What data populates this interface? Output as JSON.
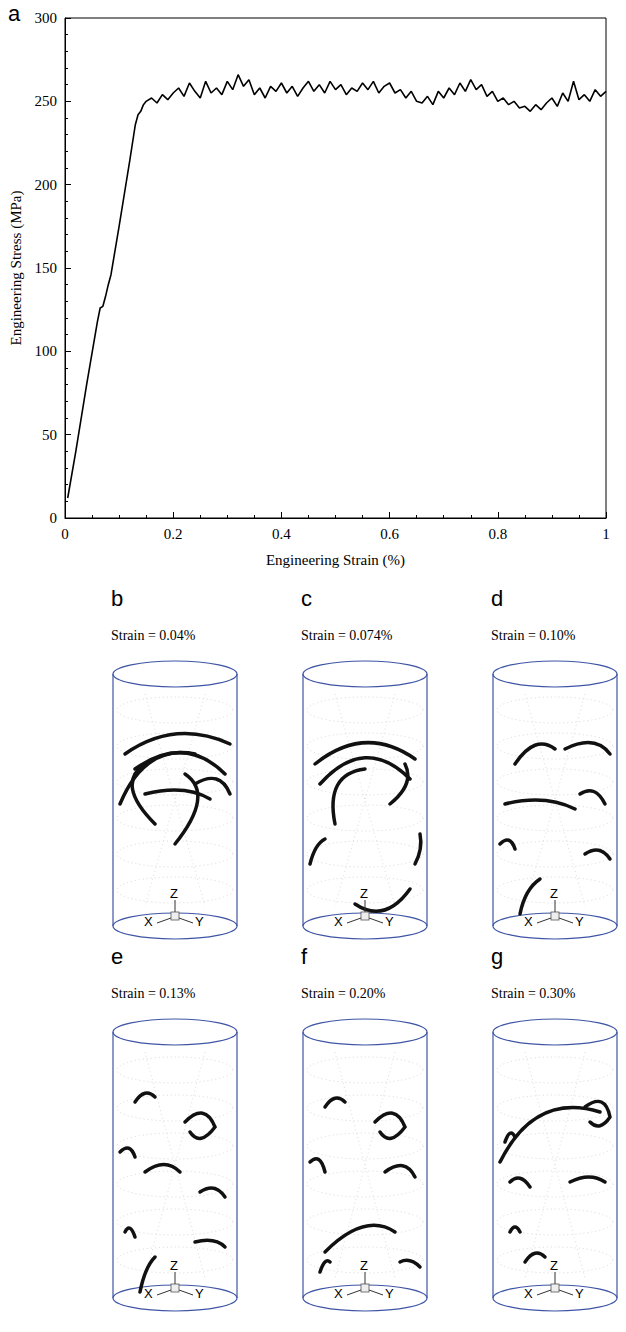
{
  "chart_data": {
    "type": "line",
    "annotations": [
      "a"
    ],
    "x_label": "Engineering Strain (%)",
    "y_label": "Engineering Stress (MPa)",
    "x": [
      0.005,
      0.02,
      0.04,
      0.06,
      0.065,
      0.07,
      0.075,
      0.08,
      0.085,
      0.1,
      0.12,
      0.13,
      0.135,
      0.14,
      0.145,
      0.15,
      0.16,
      0.17,
      0.18,
      0.19,
      0.2,
      0.21,
      0.22,
      0.23,
      0.24,
      0.25,
      0.26,
      0.27,
      0.28,
      0.29,
      0.3,
      0.31,
      0.32,
      0.33,
      0.34,
      0.35,
      0.36,
      0.37,
      0.38,
      0.39,
      0.4,
      0.41,
      0.42,
      0.43,
      0.44,
      0.45,
      0.46,
      0.47,
      0.48,
      0.49,
      0.5,
      0.51,
      0.52,
      0.53,
      0.54,
      0.55,
      0.56,
      0.57,
      0.58,
      0.59,
      0.6,
      0.61,
      0.62,
      0.63,
      0.64,
      0.65,
      0.66,
      0.67,
      0.68,
      0.69,
      0.7,
      0.71,
      0.72,
      0.73,
      0.74,
      0.75,
      0.76,
      0.77,
      0.78,
      0.79,
      0.8,
      0.81,
      0.82,
      0.83,
      0.84,
      0.85,
      0.86,
      0.87,
      0.88,
      0.89,
      0.9,
      0.91,
      0.92,
      0.93,
      0.94,
      0.95,
      0.96,
      0.97,
      0.98,
      0.99,
      1.0
    ],
    "values": [
      12,
      40,
      80,
      118,
      126,
      127,
      133,
      140,
      146,
      175,
      215,
      236,
      242,
      244,
      248,
      250,
      252,
      249,
      254,
      251,
      255,
      258,
      253,
      261,
      256,
      252,
      262,
      255,
      258,
      254,
      262,
      257,
      266,
      259,
      263,
      254,
      258,
      252,
      259,
      256,
      261,
      255,
      259,
      253,
      258,
      262,
      256,
      260,
      255,
      262,
      257,
      260,
      254,
      258,
      256,
      261,
      257,
      262,
      255,
      259,
      261,
      255,
      257,
      252,
      256,
      250,
      249,
      253,
      248,
      256,
      252,
      258,
      254,
      261,
      256,
      263,
      257,
      260,
      253,
      256,
      250,
      252,
      248,
      250,
      246,
      247,
      244,
      248,
      245,
      249,
      252,
      247,
      255,
      250,
      262,
      251,
      254,
      250,
      257,
      253,
      256
    ],
    "color": "#000000",
    "xlim": [
      0,
      1
    ],
    "xticks": [
      0,
      0.2,
      0.4,
      0.6,
      0.8,
      1
    ],
    "ylim": [
      0,
      300
    ],
    "yticks": [
      0,
      50,
      100,
      150,
      200,
      250,
      300
    ],
    "grid": false
  },
  "snapshots": {
    "panels": [
      {
        "letter": "b",
        "label": "Strain = 0.04%"
      },
      {
        "letter": "c",
        "label": "Strain = 0.074%"
      },
      {
        "letter": "d",
        "label": "Strain = 0.10%"
      },
      {
        "letter": "e",
        "label": "Strain = 0.13%"
      },
      {
        "letter": "f",
        "label": "Strain = 0.20%"
      },
      {
        "letter": "g",
        "label": "Strain = 0.30%"
      }
    ],
    "axis_names": {
      "x": "X",
      "y": "Y",
      "z": "Z"
    }
  }
}
